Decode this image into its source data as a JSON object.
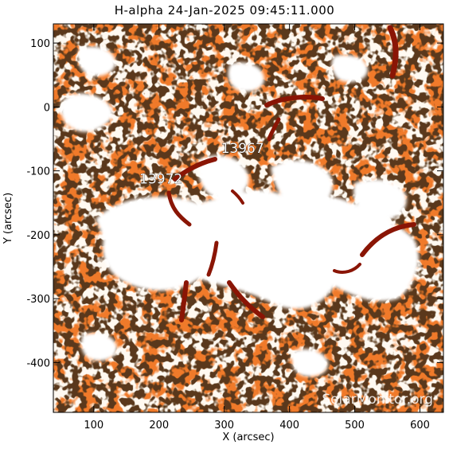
{
  "title": "H-alpha 24-Jan-2025 09:45:11.000",
  "x_axis": {
    "label": "X (arcsec)",
    "range": [
      38,
      636
    ],
    "ticks": [
      100,
      200,
      300,
      400,
      500,
      600
    ]
  },
  "y_axis": {
    "label": "Y (arcsec)",
    "range": [
      -478,
      130
    ],
    "ticks": [
      100,
      0,
      -100,
      -200,
      -300,
      -400
    ]
  },
  "active_regions": [
    {
      "label": "13967",
      "x": 295,
      "y": -72
    },
    {
      "label": "13972",
      "x": 170,
      "y": -120
    }
  ],
  "watermark": "SolarMonitor.org",
  "colors": {
    "background": "#ffffff",
    "photosphere": "#f07a2a",
    "dark_mottle": "#1a0a04",
    "plage": "#ffffff",
    "filament": "#8a1505"
  }
}
